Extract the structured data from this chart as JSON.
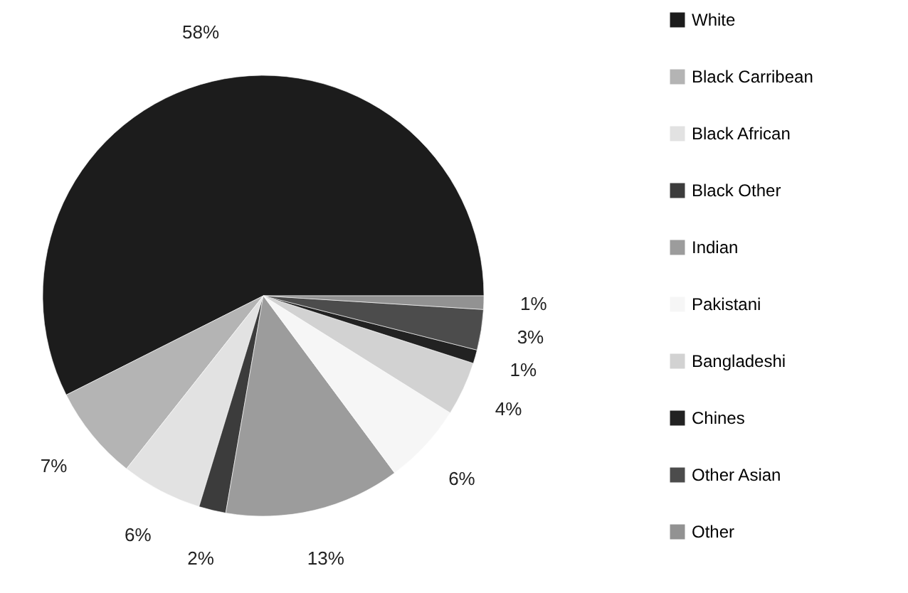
{
  "chart_data": {
    "type": "pie",
    "categories": [
      "White",
      "Black Carribean",
      "Black African",
      "Black  Other",
      "Indian",
      "Pakistani",
      "Bangladeshi",
      "Chines",
      "Other Asian",
      "Other"
    ],
    "values": [
      58,
      7,
      6,
      2,
      13,
      6,
      4,
      1,
      3,
      1
    ],
    "value_labels": [
      "58%",
      "7%",
      "6%",
      "2%",
      "13%",
      "6%",
      "4%",
      "1%",
      "3%",
      "1%"
    ],
    "colors": [
      "#1c1c1c",
      "#b4b4b4",
      "#e2e2e2",
      "#3c3c3c",
      "#9c9c9c",
      "#f6f6f6",
      "#d2d2d2",
      "#222222",
      "#4c4c4c",
      "#929292"
    ],
    "legend": "right"
  }
}
